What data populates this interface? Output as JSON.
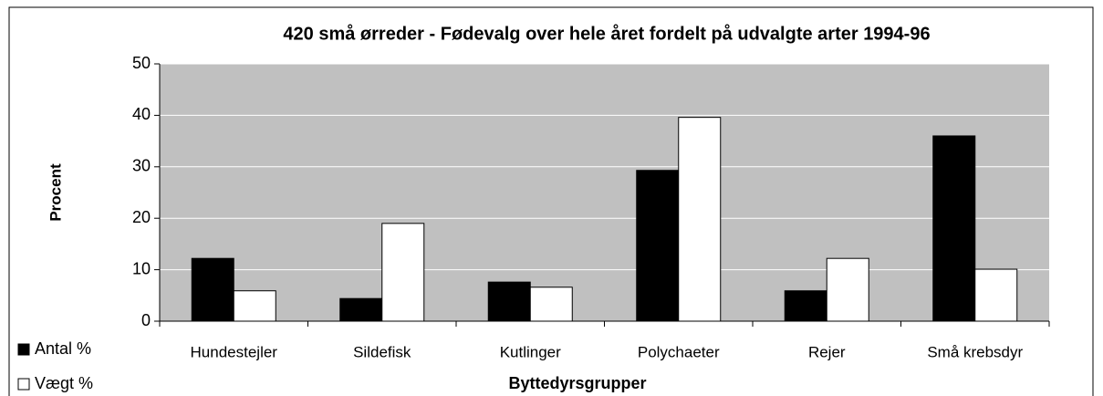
{
  "chart_data": {
    "type": "bar",
    "title": "420 små ørreder - Fødevalg over hele året fordelt på udvalgte arter 1994-96",
    "x_label": "Byttedyrsgrupper",
    "y_label": "Procent",
    "categories": [
      "Hundestejler",
      "Sildefisk",
      "Kutlinger",
      "Polychaeter",
      "Rejer",
      "Små krebsdyr"
    ],
    "series": [
      {
        "name": "Antal %",
        "color": "#000000",
        "values": [
          12.2,
          4.4,
          7.6,
          29.3,
          5.9,
          36
        ]
      },
      {
        "name": "Vægt %",
        "color": "#ffffff",
        "values": [
          5.9,
          19.0,
          6.6,
          39.6,
          12.2,
          10.1
        ]
      }
    ],
    "ylim": [
      0,
      50
    ],
    "yticks": [
      0,
      10,
      20,
      30,
      40,
      50
    ],
    "grid": true,
    "plot_background": "#c0c0c0",
    "legend": "bottom-left"
  }
}
